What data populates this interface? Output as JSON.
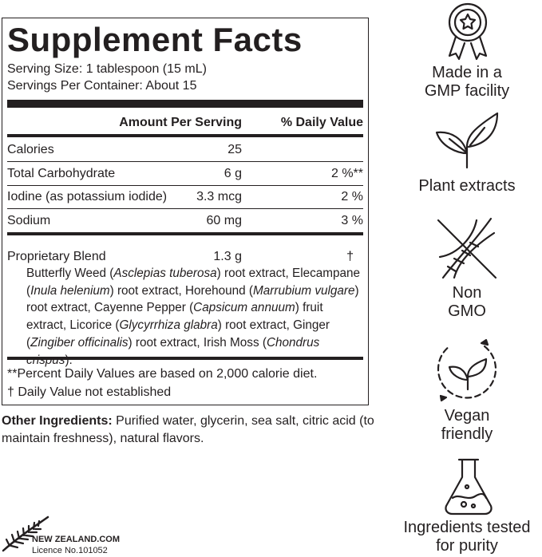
{
  "supplement_facts": {
    "title": "Supplement Facts",
    "serving_size": "Serving Size: 1 tablespoon (15 mL)",
    "servings_per_container": "Servings Per Container: About 15",
    "header": {
      "amount": "Amount Per Serving",
      "daily_value": "% Daily Value"
    },
    "rows": [
      {
        "name": "Calories",
        "amount": "25"
      },
      {
        "name": "Total Carbohydrate",
        "amount": "6 g",
        "daily_value": "2 %**"
      },
      {
        "name": "Iodine (as potassium iodide)",
        "amount": "3.3 mcg",
        "daily_value": "2 %"
      },
      {
        "name": "Sodium",
        "amount": "60 mg",
        "daily_value": "3 %"
      }
    ],
    "blend": {
      "name": "Proprietary Blend",
      "amount": "1.3 g",
      "daily_value": "†",
      "description": [
        {
          "text": "Butterfly Weed (",
          "italic": false
        },
        {
          "text": "Asclepias tuberosa",
          "italic": true
        },
        {
          "text": ") root extract, Elecampane (",
          "italic": false
        },
        {
          "text": "Inula helenium",
          "italic": true
        },
        {
          "text": ") root extract, Horehound (",
          "italic": false
        },
        {
          "text": "Marrubium vulgare",
          "italic": true
        },
        {
          "text": ") root extract, Cayenne Pepper (",
          "italic": false
        },
        {
          "text": "Capsicum annuum",
          "italic": true
        },
        {
          "text": ") fruit extract, Licorice (",
          "italic": false
        },
        {
          "text": "Glycyrrhiza glabra",
          "italic": true
        },
        {
          "text": ") root extract, Ginger (",
          "italic": false
        },
        {
          "text": "Zingiber officinalis",
          "italic": true
        },
        {
          "text": ") root extract, Irish Moss (",
          "italic": false
        },
        {
          "text": "Chondrus crispus",
          "italic": true
        },
        {
          "text": ").",
          "italic": false
        }
      ]
    },
    "footnotes": [
      "**Percent Daily Values are based on 2,000 calorie diet.",
      "† Daily Value not established"
    ]
  },
  "other_ingredients": {
    "label": "Other Ingredients:",
    "text": "Purified water, glycerin, sea salt, citric acid (to maintain freshness), natural flavors."
  },
  "badges": [
    {
      "lines": [
        "Made in a",
        "GMP facility"
      ]
    },
    {
      "lines": [
        "Plant extracts"
      ]
    },
    {
      "lines": [
        "Non",
        "GMO"
      ]
    },
    {
      "lines": [
        "Vegan",
        "friendly"
      ]
    },
    {
      "lines": [
        "Ingredients tested",
        "for purity"
      ]
    }
  ],
  "logo": {
    "name": "NEW ZEALAND.COM",
    "licence": "Licence No.101052"
  }
}
